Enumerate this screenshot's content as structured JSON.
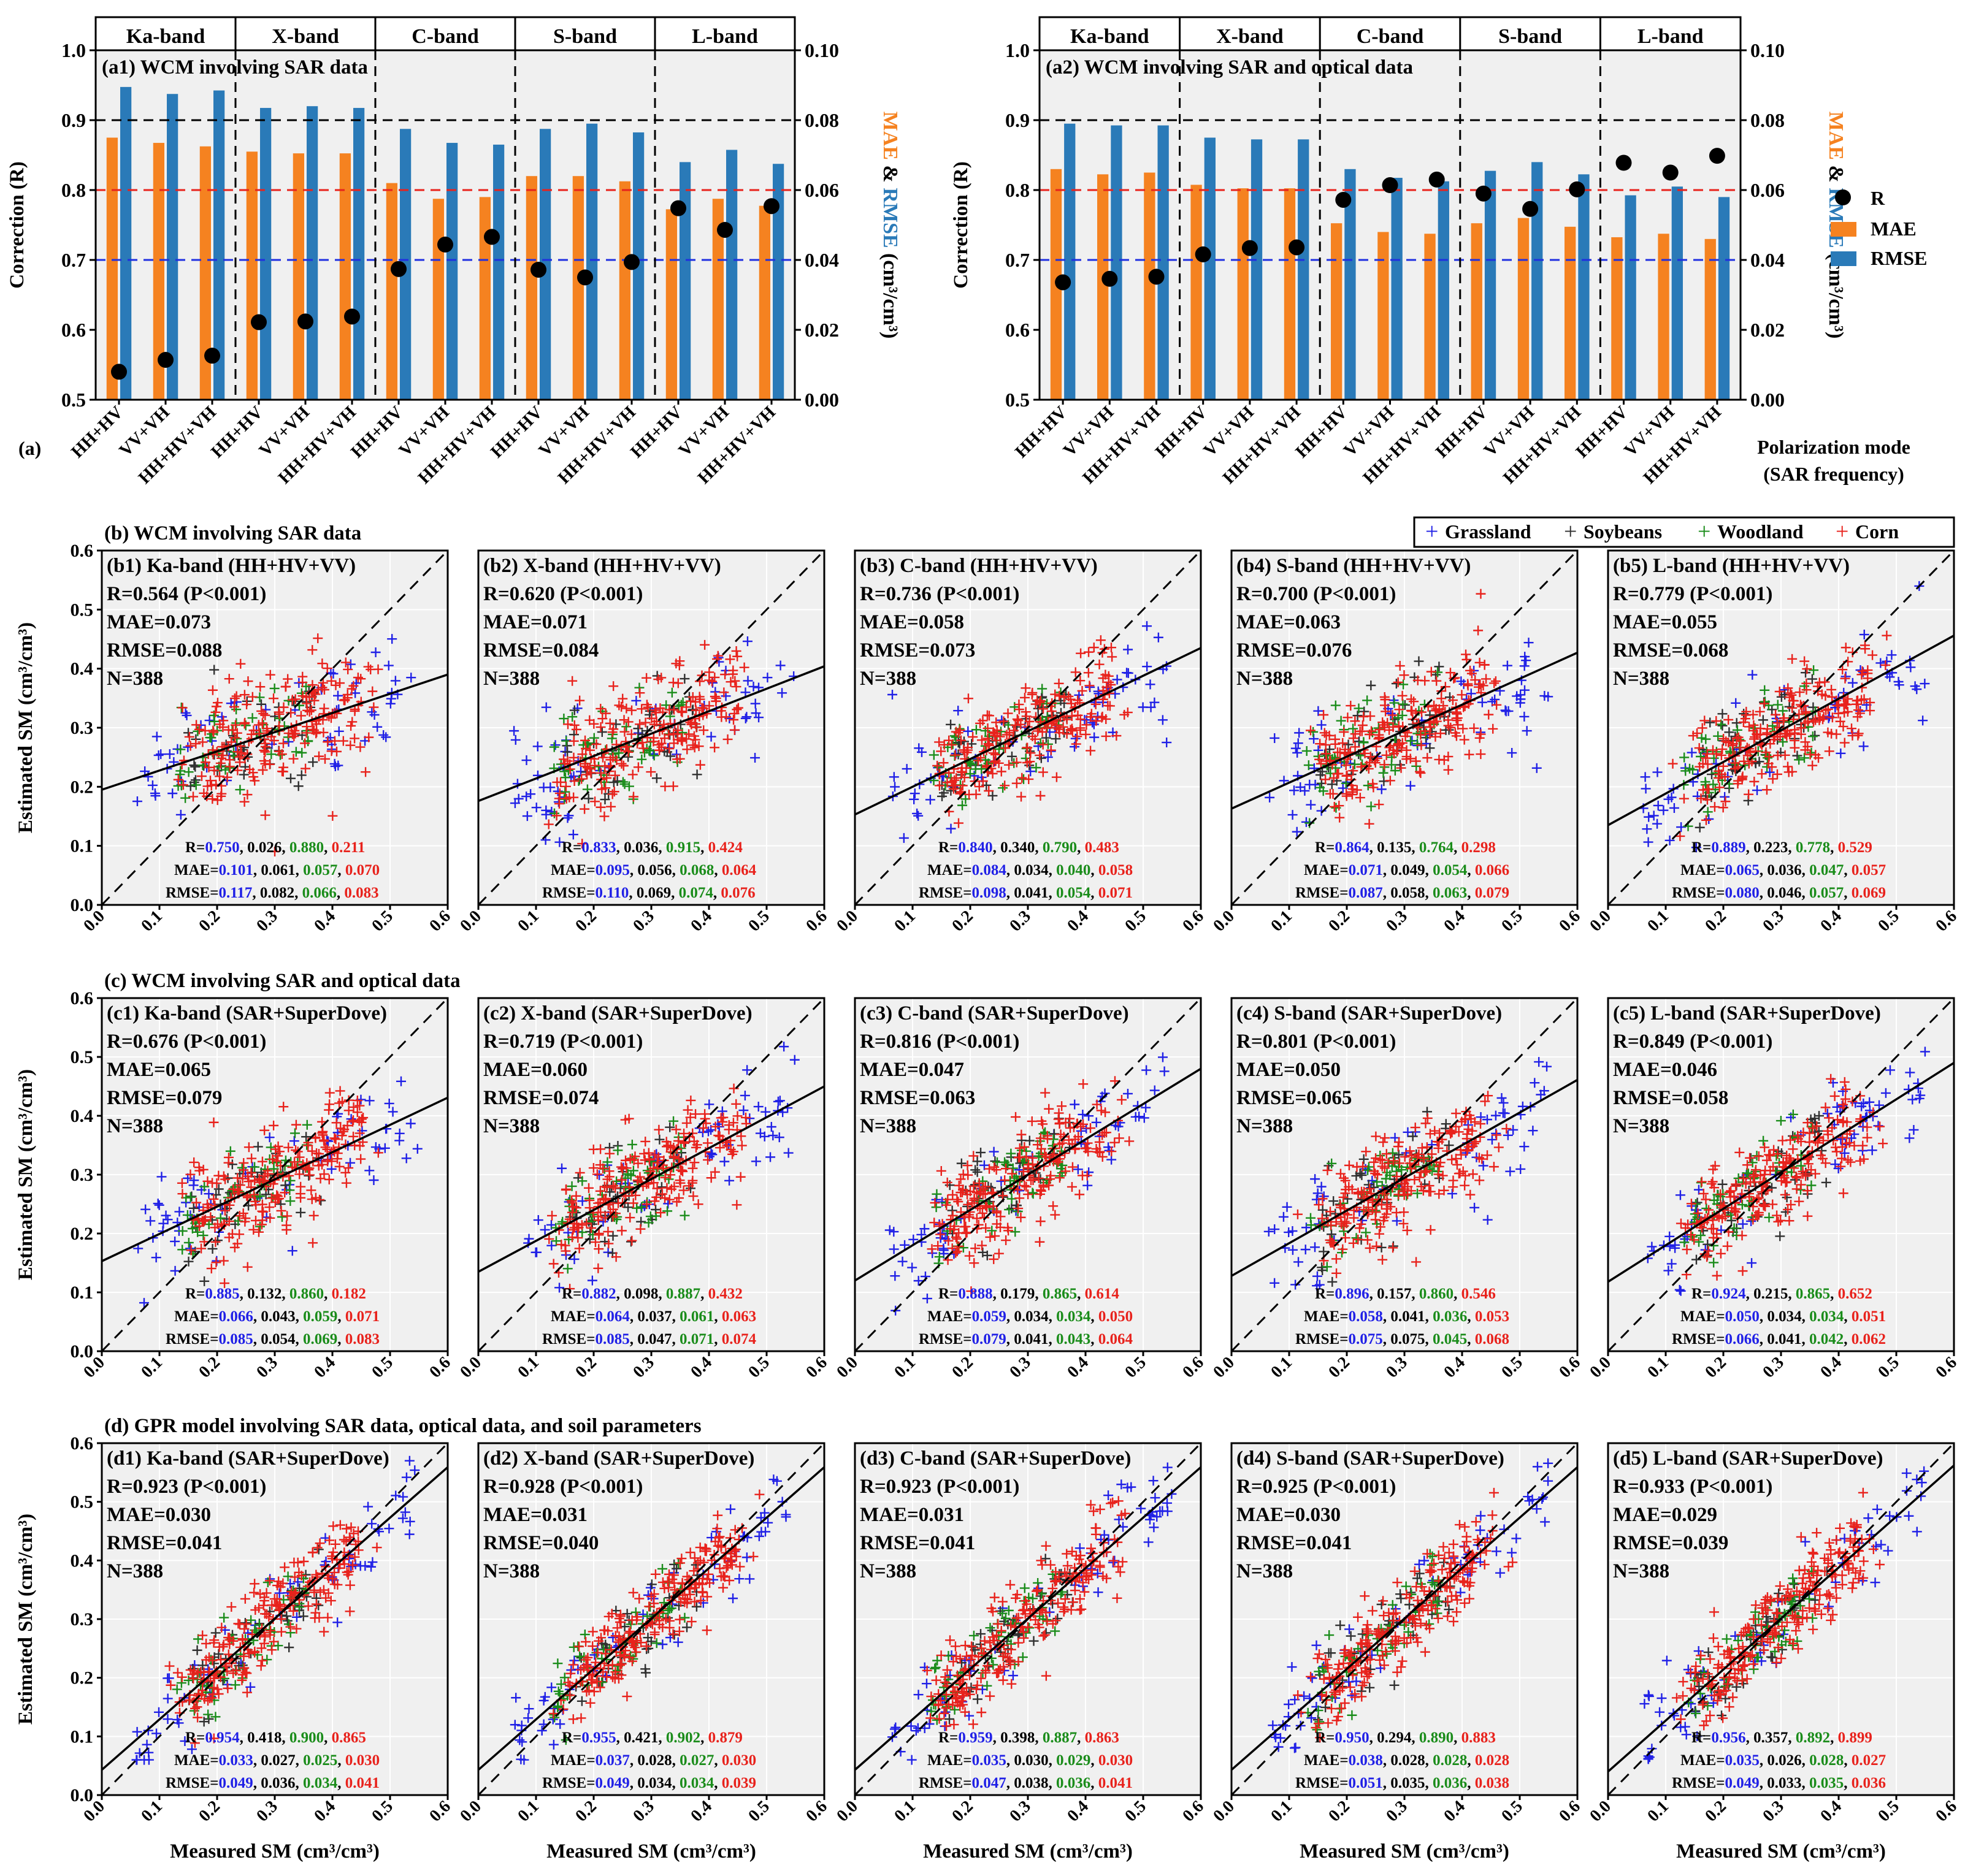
{
  "figure_label": "(a)",
  "bar_panels": [
    {
      "id": "a1",
      "title": "(a1) WCM involving SAR data",
      "ylabel_left": "Correction (R)",
      "ylabel_right": [
        "MAE",
        " & ",
        "RMSE",
        " (cm³/cm³)"
      ],
      "ylim_left": [
        0.5,
        1.0
      ],
      "ylim_right": [
        0.0,
        0.1
      ],
      "left_ticks": [
        "0.5",
        "0.6",
        "0.7",
        "0.8",
        "0.9",
        "1.0"
      ],
      "right_ticks": [
        "0.00",
        "0.02",
        "0.04",
        "0.06",
        "0.08",
        "0.10"
      ],
      "bands": [
        "Ka-band",
        "X-band",
        "C-band",
        "S-band",
        "L-band"
      ],
      "categories": [
        "HH+HV",
        "VV+VH",
        "HH+HV+VH",
        "HH+HV",
        "VV+VH",
        "HH+HV+VH",
        "HH+HV",
        "VV+VH",
        "HH+HV+VH",
        "HH+HV",
        "VV+VH",
        "HH+HV+VH",
        "HH+HV",
        "VV+VH",
        "HH+HV+VH"
      ],
      "R": [
        0.54,
        0.557,
        0.563,
        0.611,
        0.612,
        0.619,
        0.687,
        0.722,
        0.733,
        0.686,
        0.675,
        0.697,
        0.774,
        0.743,
        0.777
      ],
      "MAE": [
        0.075,
        0.0735,
        0.0725,
        0.071,
        0.0705,
        0.0705,
        0.062,
        0.0575,
        0.058,
        0.064,
        0.064,
        0.0625,
        0.0545,
        0.0575,
        0.0555
      ],
      "RMSE": [
        0.0895,
        0.0875,
        0.0885,
        0.0835,
        0.084,
        0.0835,
        0.0775,
        0.0735,
        0.073,
        0.0775,
        0.079,
        0.0765,
        0.068,
        0.0715,
        0.0675
      ]
    },
    {
      "id": "a2",
      "title": "(a2) WCM involving SAR and optical data",
      "ylabel_left": "Correction (R)",
      "ylabel_right": [
        "MAE",
        " & ",
        "RMSE",
        " (cm³/cm³)"
      ],
      "ylim_left": [
        0.5,
        1.0
      ],
      "ylim_right": [
        0.0,
        0.1
      ],
      "left_ticks": [
        "0.5",
        "0.6",
        "0.7",
        "0.8",
        "0.9",
        "1.0"
      ],
      "right_ticks": [
        "0.00",
        "0.02",
        "0.04",
        "0.06",
        "0.08",
        "0.10"
      ],
      "bands": [
        "Ka-band",
        "X-band",
        "C-band",
        "S-band",
        "L-band"
      ],
      "categories": [
        "HH+HV",
        "VV+VH",
        "HH+HV+VH",
        "HH+HV",
        "VV+VH",
        "HH+HV+VH",
        "HH+HV",
        "VV+VH",
        "HH+HV+VH",
        "HH+HV",
        "VV+VH",
        "HH+HV+VH",
        "HH+HV",
        "VV+VH",
        "HH+HV+VH"
      ],
      "R": [
        0.668,
        0.673,
        0.676,
        0.708,
        0.717,
        0.718,
        0.786,
        0.807,
        0.815,
        0.795,
        0.773,
        0.801,
        0.839,
        0.825,
        0.849
      ],
      "MAE": [
        0.066,
        0.0645,
        0.065,
        0.0615,
        0.0605,
        0.0605,
        0.0505,
        0.048,
        0.0475,
        0.0505,
        0.052,
        0.0495,
        0.0465,
        0.0475,
        0.046
      ],
      "RMSE": [
        0.079,
        0.0785,
        0.0785,
        0.075,
        0.0745,
        0.0745,
        0.066,
        0.0635,
        0.0625,
        0.0655,
        0.068,
        0.0645,
        0.0585,
        0.061,
        0.058
      ]
    }
  ],
  "bar_legend": [
    "R",
    "MAE",
    "RMSE"
  ],
  "xaxis_note": [
    "Polarization mode",
    "(SAR frequency)"
  ],
  "colors": {
    "mae": "#f58220",
    "rmse": "#2a7ab8",
    "r": "#000000",
    "plot_bg": "#f0f0f0",
    "ref_black": "#000000",
    "ref_red": "#e8221c",
    "ref_blue": "#1f2fe0",
    "grassland": "#2020e6",
    "soybeans": "#303030",
    "woodland": "#1a8c1a",
    "corn": "#e8221c"
  },
  "legend": [
    "Grassland",
    "Soybeans",
    "Woodland",
    "Corn"
  ],
  "scatter_rows": [
    {
      "title": "(b) WCM involving SAR data",
      "panels": [
        {
          "label": "(b1) Ka-band (HH+HV+VV)",
          "R": "R=0.564 (P<0.001)",
          "MAE": "MAE=0.073",
          "RMSE": "RMSE=0.088",
          "N": "N=388",
          "slope": 0.325,
          "intercept": 0.195,
          "class_R": [
            "0.750",
            "0.026",
            "0.880",
            "0.211"
          ],
          "class_MAE": [
            "0.101",
            "0.061",
            "0.057",
            "0.070"
          ],
          "class_RMSE": [
            "0.117",
            "0.082",
            "0.066",
            "0.083"
          ]
        },
        {
          "label": "(b2) X-band (HH+HV+VV)",
          "R": "R=0.620 (P<0.001)",
          "MAE": "MAE=0.071",
          "RMSE": "RMSE=0.084",
          "N": "N=388",
          "slope": 0.38,
          "intercept": 0.176,
          "class_R": [
            "0.833",
            "0.036",
            "0.915",
            "0.424"
          ],
          "class_MAE": [
            "0.095",
            "0.056",
            "0.068",
            "0.064"
          ],
          "class_RMSE": [
            "0.110",
            "0.069",
            "0.074",
            "0.076"
          ]
        },
        {
          "label": "(b3) C-band (HH+HV+VV)",
          "R": "R=0.736 (P<0.001)",
          "MAE": "MAE=0.058",
          "RMSE": "RMSE=0.073",
          "N": "N=388",
          "slope": 0.47,
          "intercept": 0.153,
          "class_R": [
            "0.840",
            "0.340",
            "0.790",
            "0.483"
          ],
          "class_MAE": [
            "0.084",
            "0.034",
            "0.040",
            "0.058"
          ],
          "class_RMSE": [
            "0.098",
            "0.041",
            "0.054",
            "0.071"
          ]
        },
        {
          "label": "(b4) S-band (HH+HV+VV)",
          "R": "R=0.700 (P<0.001)",
          "MAE": "MAE=0.063",
          "RMSE": "RMSE=0.076",
          "N": "N=388",
          "slope": 0.44,
          "intercept": 0.163,
          "class_R": [
            "0.864",
            "0.135",
            "0.764",
            "0.298"
          ],
          "class_MAE": [
            "0.071",
            "0.049",
            "0.054",
            "0.066"
          ],
          "class_RMSE": [
            "0.087",
            "0.058",
            "0.063",
            "0.079"
          ]
        },
        {
          "label": "(b5) L-band (HH+HV+VV)",
          "R": "R=0.779 (P<0.001)",
          "MAE": "MAE=0.055",
          "RMSE": "RMSE=0.068",
          "N": "N=388",
          "slope": 0.535,
          "intercept": 0.135,
          "class_R": [
            "0.889",
            "0.223",
            "0.778",
            "0.529"
          ],
          "class_MAE": [
            "0.065",
            "0.036",
            "0.047",
            "0.057"
          ],
          "class_RMSE": [
            "0.080",
            "0.046",
            "0.057",
            "0.069"
          ]
        }
      ]
    },
    {
      "title": "(c) WCM involving SAR and optical data",
      "panels": [
        {
          "label": "(c1) Ka-band (SAR+SuperDove)",
          "R": "R=0.676 (P<0.001)",
          "MAE": "MAE=0.065",
          "RMSE": "RMSE=0.079",
          "N": "N=388",
          "slope": 0.463,
          "intercept": 0.153,
          "class_R": [
            "0.885",
            "0.132",
            "0.860",
            "0.182"
          ],
          "class_MAE": [
            "0.066",
            "0.043",
            "0.059",
            "0.071"
          ],
          "class_RMSE": [
            "0.085",
            "0.054",
            "0.069",
            "0.083"
          ]
        },
        {
          "label": "(c2) X-band (SAR+SuperDove)",
          "R": "R=0.719 (P<0.001)",
          "MAE": "MAE=0.060",
          "RMSE": "RMSE=0.074",
          "N": "N=388",
          "slope": 0.525,
          "intercept": 0.135,
          "class_R": [
            "0.882",
            "0.098",
            "0.887",
            "0.432"
          ],
          "class_MAE": [
            "0.064",
            "0.037",
            "0.061",
            "0.063"
          ],
          "class_RMSE": [
            "0.085",
            "0.047",
            "0.071",
            "0.074"
          ]
        },
        {
          "label": "(c3) C-band (SAR+SuperDove)",
          "R": "R=0.816 (P<0.001)",
          "MAE": "MAE=0.047",
          "RMSE": "RMSE=0.063",
          "N": "N=388",
          "slope": 0.6,
          "intercept": 0.12,
          "class_R": [
            "0.888",
            "0.179",
            "0.865",
            "0.614"
          ],
          "class_MAE": [
            "0.059",
            "0.034",
            "0.034",
            "0.050"
          ],
          "class_RMSE": [
            "0.079",
            "0.041",
            "0.043",
            "0.064"
          ]
        },
        {
          "label": "(c4) S-band (SAR+SuperDove)",
          "R": "R=0.801 (P<0.001)",
          "MAE": "MAE=0.050",
          "RMSE": "RMSE=0.065",
          "N": "N=388",
          "slope": 0.555,
          "intercept": 0.128,
          "class_R": [
            "0.896",
            "0.157",
            "0.860",
            "0.546"
          ],
          "class_MAE": [
            "0.058",
            "0.041",
            "0.036",
            "0.053"
          ],
          "class_RMSE": [
            "0.075",
            "0.075",
            "0.045",
            "0.068"
          ]
        },
        {
          "label": "(c5) L-band (SAR+SuperDove)",
          "R": "R=0.849 (P<0.001)",
          "MAE": "MAE=0.046",
          "RMSE": "RMSE=0.058",
          "N": "N=388",
          "slope": 0.62,
          "intercept": 0.118,
          "class_R": [
            "0.924",
            "0.215",
            "0.865",
            "0.652"
          ],
          "class_MAE": [
            "0.050",
            "0.034",
            "0.034",
            "0.051"
          ],
          "class_RMSE": [
            "0.066",
            "0.041",
            "0.042",
            "0.062"
          ]
        }
      ]
    },
    {
      "title": "(d) GPR model involving SAR data, optical data, and soil parameters",
      "panels": [
        {
          "label": "(d1) Ka-band (SAR+SuperDove)",
          "R": "R=0.923 (P<0.001)",
          "MAE": "MAE=0.030",
          "RMSE": "RMSE=0.041",
          "N": "N=388",
          "slope": 0.86,
          "intercept": 0.043,
          "class_R": [
            "0.954",
            "0.418",
            "0.900",
            "0.865"
          ],
          "class_MAE": [
            "0.033",
            "0.027",
            "0.025",
            "0.030"
          ],
          "class_RMSE": [
            "0.049",
            "0.036",
            "0.034",
            "0.041"
          ]
        },
        {
          "label": "(d2) X-band (SAR+SuperDove)",
          "R": "R=0.928 (P<0.001)",
          "MAE": "MAE=0.031",
          "RMSE": "RMSE=0.040",
          "N": "N=388",
          "slope": 0.86,
          "intercept": 0.043,
          "class_R": [
            "0.955",
            "0.421",
            "0.902",
            "0.879"
          ],
          "class_MAE": [
            "0.037",
            "0.028",
            "0.027",
            "0.030"
          ],
          "class_RMSE": [
            "0.049",
            "0.034",
            "0.034",
            "0.039"
          ]
        },
        {
          "label": "(d3) C-band (SAR+SuperDove)",
          "R": "R=0.923 (P<0.001)",
          "MAE": "MAE=0.031",
          "RMSE": "RMSE=0.041",
          "N": "N=388",
          "slope": 0.86,
          "intercept": 0.043,
          "class_R": [
            "0.959",
            "0.398",
            "0.887",
            "0.863"
          ],
          "class_MAE": [
            "0.035",
            "0.030",
            "0.029",
            "0.030"
          ],
          "class_RMSE": [
            "0.047",
            "0.038",
            "0.036",
            "0.041"
          ]
        },
        {
          "label": "(d4) S-band (SAR+SuperDove)",
          "R": "R=0.925 (P<0.001)",
          "MAE": "MAE=0.030",
          "RMSE": "RMSE=0.041",
          "N": "N=388",
          "slope": 0.86,
          "intercept": 0.043,
          "class_R": [
            "0.950",
            "0.294",
            "0.890",
            "0.883"
          ],
          "class_MAE": [
            "0.038",
            "0.028",
            "0.028",
            "0.028"
          ],
          "class_RMSE": [
            "0.051",
            "0.035",
            "0.036",
            "0.038"
          ]
        },
        {
          "label": "(d5) L-band (SAR+SuperDove)",
          "R": "R=0.933 (P<0.001)",
          "MAE": "MAE=0.029",
          "RMSE": "RMSE=0.039",
          "N": "N=388",
          "slope": 0.87,
          "intercept": 0.04,
          "class_R": [
            "0.956",
            "0.357",
            "0.892",
            "0.899"
          ],
          "class_MAE": [
            "0.035",
            "0.026",
            "0.028",
            "0.027"
          ],
          "class_RMSE": [
            "0.049",
            "0.033",
            "0.035",
            "0.036"
          ]
        }
      ]
    }
  ],
  "scatter_axes": {
    "xlabel": "Measured SM (cm³/cm³)",
    "ylabel": "Estimated SM (cm³/cm³)",
    "xlim": [
      0.0,
      0.6
    ],
    "ylim": [
      0.0,
      0.6
    ],
    "ticks": [
      "0.0",
      "0.1",
      "0.2",
      "0.3",
      "0.4",
      "0.5",
      "0.6"
    ]
  },
  "chart_data": [
    {
      "type": "bar",
      "title": "(a1) WCM involving SAR data",
      "categories": [
        "HH+HV",
        "VV+VH",
        "HH+HV+VH",
        "HH+HV",
        "VV+VH",
        "HH+HV+VH",
        "HH+HV",
        "VV+VH",
        "HH+HV+VH",
        "HH+HV",
        "VV+VH",
        "HH+HV+VH",
        "HH+HV",
        "VV+VH",
        "HH+HV+VH"
      ],
      "series": [
        {
          "name": "MAE",
          "axis": "right"
        },
        {
          "name": "RMSE",
          "axis": "right"
        },
        {
          "name": "R",
          "axis": "left",
          "marker": "dot"
        }
      ],
      "ylim": [
        0.5,
        1.0
      ],
      "ylim_right": [
        0,
        0.1
      ]
    },
    {
      "type": "bar",
      "title": "(a2) WCM involving SAR and optical data",
      "categories": [
        "HH+HV",
        "VV+VH",
        "HH+HV+VH",
        "HH+HV",
        "VV+VH",
        "HH+HV+VH",
        "HH+HV",
        "VV+VH",
        "HH+HV+VH",
        "HH+HV",
        "VV+VH",
        "HH+HV+VH",
        "HH+HV",
        "VV+VH",
        "HH+HV+VH"
      ],
      "series": [
        {
          "name": "MAE",
          "axis": "right"
        },
        {
          "name": "RMSE",
          "axis": "right"
        },
        {
          "name": "R",
          "axis": "left",
          "marker": "dot"
        }
      ],
      "ylim": [
        0.5,
        1.0
      ],
      "ylim_right": [
        0,
        0.1
      ]
    },
    {
      "type": "scatter",
      "title": "Measured vs Estimated SM (15 panels)",
      "xlabel": "Measured SM (cm³/cm³)",
      "ylabel": "Estimated SM (cm³/cm³)",
      "xlim": [
        0,
        0.6
      ],
      "ylim": [
        0,
        0.6
      ],
      "series": [
        {
          "name": "Grassland"
        },
        {
          "name": "Soybeans"
        },
        {
          "name": "Woodland"
        },
        {
          "name": "Corn"
        }
      ],
      "n_points": 388
    }
  ]
}
